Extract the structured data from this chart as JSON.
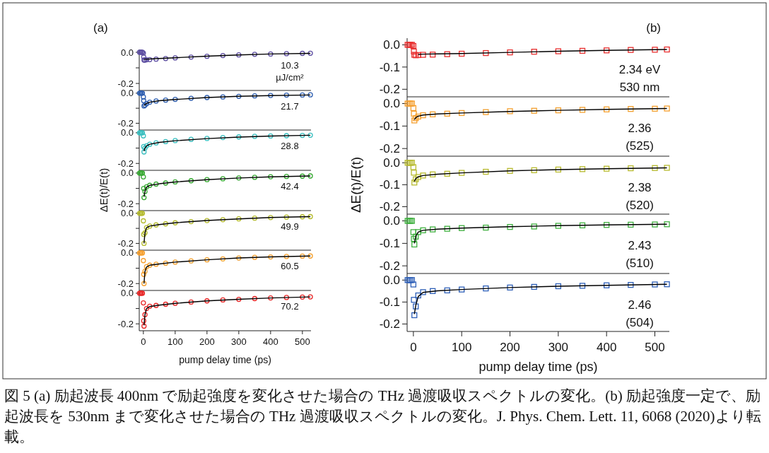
{
  "chart_data": [
    {
      "type": "scatter",
      "title": "(a)",
      "marker": "circle",
      "tick_labels": "y",
      "xlim": [
        -13,
        527
      ],
      "ylim": [
        -0.245,
        0.018
      ],
      "yticks": [
        {
          "value": 0,
          "label": "0.0"
        },
        {
          "value": -0.1,
          "label": null
        },
        {
          "value": -0.2,
          "label": "-0.2"
        }
      ],
      "annotations": [
        "10.3",
        "µJ/cm²"
      ],
      "series": [
        {
          "type": "scatter",
          "color": "#5e4fa2",
          "x": [
            -12,
            -9,
            -6,
            -3,
            0,
            1,
            2,
            5,
            10,
            20,
            40,
            70,
            100,
            150,
            200,
            250,
            300,
            350,
            400,
            450,
            500,
            525
          ],
          "values": [
            0,
            0,
            0,
            0,
            -0.005,
            -0.03,
            -0.05,
            -0.05,
            -0.048,
            -0.047,
            -0.044,
            -0.04,
            -0.036,
            -0.031,
            -0.026,
            -0.021,
            -0.017,
            -0.013,
            -0.011,
            -0.009,
            -0.007,
            -0.006
          ]
        },
        {
          "type": "line",
          "marker": "none",
          "color": "#000000",
          "x": [
            2,
            5,
            10,
            20,
            50,
            100,
            200,
            300,
            400,
            525
          ],
          "values": [
            -0.045,
            -0.045,
            -0.044,
            -0.043,
            -0.04,
            -0.035,
            -0.025,
            -0.017,
            -0.011,
            -0.007
          ]
        }
      ]
    },
    {
      "type": "scatter",
      "marker": "circle",
      "tick_labels": "y",
      "xlim": [
        -13,
        527
      ],
      "ylim": [
        -0.245,
        0.018
      ],
      "yticks": [
        {
          "value": 0,
          "label": "0.0"
        },
        {
          "value": -0.1,
          "label": null
        },
        {
          "value": -0.2,
          "label": "-0.2"
        }
      ],
      "annotations": [
        "21.7"
      ],
      "series": [
        {
          "type": "scatter",
          "color": "#2f5fb0",
          "x": [
            -12,
            -9,
            -6,
            -3,
            0,
            1,
            2,
            5,
            10,
            20,
            40,
            70,
            100,
            150,
            200,
            250,
            300,
            350,
            400,
            450,
            500,
            525
          ],
          "values": [
            0,
            0,
            0,
            0,
            -0.025,
            -0.05,
            -0.085,
            -0.08,
            -0.07,
            -0.06,
            -0.052,
            -0.046,
            -0.041,
            -0.034,
            -0.029,
            -0.025,
            -0.021,
            -0.018,
            -0.015,
            -0.013,
            -0.012,
            -0.011
          ]
        },
        {
          "type": "line",
          "marker": "none",
          "color": "#000000",
          "x": [
            2,
            5,
            10,
            20,
            50,
            100,
            200,
            300,
            400,
            525
          ],
          "values": [
            -0.082,
            -0.075,
            -0.068,
            -0.06,
            -0.05,
            -0.042,
            -0.029,
            -0.021,
            -0.016,
            -0.012
          ]
        }
      ]
    },
    {
      "type": "scatter",
      "marker": "circle",
      "tick_labels": "y",
      "xlim": [
        -13,
        527
      ],
      "ylim": [
        -0.245,
        0.018
      ],
      "yticks": [
        {
          "value": 0,
          "label": "0.0"
        },
        {
          "value": -0.1,
          "label": null
        },
        {
          "value": -0.2,
          "label": "-0.2"
        }
      ],
      "annotations": [
        "28.8"
      ],
      "series": [
        {
          "type": "scatter",
          "color": "#3bbfc0",
          "x": [
            -12,
            -9,
            -6,
            -3,
            0,
            1,
            2,
            5,
            10,
            20,
            40,
            70,
            100,
            150,
            200,
            250,
            300,
            350,
            400,
            450,
            500,
            525
          ],
          "values": [
            0,
            0,
            0,
            0,
            -0.02,
            -0.09,
            -0.125,
            -0.1,
            -0.085,
            -0.075,
            -0.066,
            -0.058,
            -0.051,
            -0.043,
            -0.037,
            -0.031,
            -0.027,
            -0.023,
            -0.021,
            -0.019,
            -0.017,
            -0.016
          ]
        },
        {
          "type": "line",
          "marker": "none",
          "color": "#000000",
          "x": [
            2,
            5,
            10,
            20,
            50,
            100,
            200,
            300,
            400,
            525
          ],
          "values": [
            -0.12,
            -0.1,
            -0.085,
            -0.075,
            -0.063,
            -0.052,
            -0.038,
            -0.028,
            -0.021,
            -0.016
          ]
        }
      ]
    },
    {
      "type": "scatter",
      "marker": "circle",
      "tick_labels": "y",
      "ylabel": "ΔE(t)/E(t)",
      "xlim": [
        -13,
        527
      ],
      "ylim": [
        -0.245,
        0.018
      ],
      "yticks": [
        {
          "value": 0,
          "label": "0.0"
        },
        {
          "value": -0.1,
          "label": null
        },
        {
          "value": -0.2,
          "label": "-0.2"
        }
      ],
      "annotations": [
        "42.4"
      ],
      "series": [
        {
          "type": "scatter",
          "color": "#3aaa35",
          "x": [
            -12,
            -9,
            -6,
            -3,
            0,
            1,
            2,
            5,
            10,
            20,
            40,
            70,
            100,
            150,
            200,
            250,
            300,
            350,
            400,
            450,
            500,
            525
          ],
          "values": [
            0,
            0,
            0,
            0,
            -0.025,
            -0.1,
            -0.16,
            -0.12,
            -0.09,
            -0.08,
            -0.072,
            -0.065,
            -0.058,
            -0.05,
            -0.043,
            -0.037,
            -0.032,
            -0.028,
            -0.024,
            -0.022,
            -0.02,
            -0.019
          ]
        },
        {
          "type": "line",
          "marker": "none",
          "color": "#000000",
          "x": [
            2,
            5,
            10,
            20,
            50,
            100,
            200,
            300,
            400,
            525
          ],
          "values": [
            -0.155,
            -0.12,
            -0.092,
            -0.08,
            -0.07,
            -0.058,
            -0.043,
            -0.032,
            -0.025,
            -0.019
          ]
        }
      ]
    },
    {
      "type": "scatter",
      "marker": "circle",
      "tick_labels": "y",
      "xlim": [
        -13,
        527
      ],
      "ylim": [
        -0.245,
        0.018
      ],
      "yticks": [
        {
          "value": 0,
          "label": "0.0"
        },
        {
          "value": -0.1,
          "label": null
        },
        {
          "value": -0.2,
          "label": "-0.2"
        }
      ],
      "annotations": [
        "49.9"
      ],
      "series": [
        {
          "type": "scatter",
          "color": "#b5bb30",
          "x": [
            -12,
            -9,
            -6,
            -3,
            0,
            1,
            2,
            5,
            10,
            20,
            40,
            70,
            100,
            150,
            200,
            250,
            300,
            350,
            400,
            450,
            500,
            525
          ],
          "values": [
            0,
            0,
            0,
            0,
            -0.05,
            -0.14,
            -0.2,
            -0.13,
            -0.095,
            -0.085,
            -0.077,
            -0.07,
            -0.063,
            -0.055,
            -0.048,
            -0.042,
            -0.037,
            -0.032,
            -0.028,
            -0.025,
            -0.023,
            -0.022
          ]
        },
        {
          "type": "line",
          "marker": "none",
          "color": "#000000",
          "x": [
            2,
            5,
            10,
            20,
            50,
            100,
            200,
            300,
            400,
            525
          ],
          "values": [
            -0.2,
            -0.13,
            -0.095,
            -0.085,
            -0.075,
            -0.063,
            -0.048,
            -0.037,
            -0.028,
            -0.022
          ]
        }
      ]
    },
    {
      "type": "scatter",
      "marker": "circle",
      "tick_labels": "y",
      "xlim": [
        -13,
        527
      ],
      "ylim": [
        -0.245,
        0.018
      ],
      "yticks": [
        {
          "value": 0,
          "label": "0.0"
        },
        {
          "value": -0.1,
          "label": null
        },
        {
          "value": -0.2,
          "label": "-0.2"
        }
      ],
      "annotations": [
        "60.5"
      ],
      "series": [
        {
          "type": "scatter",
          "color": "#f5a030",
          "x": [
            -12,
            -9,
            -6,
            -3,
            0,
            1,
            2,
            5,
            10,
            20,
            40,
            70,
            100,
            150,
            200,
            250,
            300,
            350,
            400,
            450,
            500,
            525
          ],
          "values": [
            0,
            0,
            0,
            0,
            -0.05,
            -0.14,
            -0.2,
            -0.12,
            -0.09,
            -0.08,
            -0.074,
            -0.067,
            -0.06,
            -0.052,
            -0.045,
            -0.039,
            -0.033,
            -0.029,
            -0.026,
            -0.023,
            -0.021,
            -0.02
          ]
        },
        {
          "type": "line",
          "marker": "none",
          "color": "#000000",
          "x": [
            2,
            5,
            10,
            20,
            50,
            100,
            200,
            300,
            400,
            525
          ],
          "values": [
            -0.2,
            -0.12,
            -0.092,
            -0.08,
            -0.072,
            -0.06,
            -0.045,
            -0.033,
            -0.026,
            -0.02
          ]
        }
      ]
    },
    {
      "type": "scatter",
      "marker": "circle",
      "xlabel": "pump delay time (ps)",
      "xlim": [
        -13,
        527
      ],
      "ylim": [
        -0.245,
        0.018
      ],
      "xticks": [
        0,
        100,
        200,
        300,
        400,
        500
      ],
      "yticks": [
        {
          "value": 0,
          "label": "0.0"
        },
        {
          "value": -0.1,
          "label": null
        },
        {
          "value": -0.2,
          "label": "-0.2"
        }
      ],
      "annotations": [
        "70.2"
      ],
      "series": [
        {
          "type": "scatter",
          "color": "#e82828",
          "x": [
            -12,
            -9,
            -6,
            -3,
            0,
            1,
            2,
            5,
            10,
            20,
            40,
            70,
            100,
            150,
            200,
            250,
            300,
            350,
            400,
            450,
            500,
            525
          ],
          "values": [
            0,
            0,
            0,
            0,
            -0.063,
            -0.18,
            -0.215,
            -0.14,
            -0.1,
            -0.085,
            -0.08,
            -0.072,
            -0.066,
            -0.058,
            -0.05,
            -0.044,
            -0.04,
            -0.035,
            -0.031,
            -0.028,
            -0.025,
            -0.024
          ]
        },
        {
          "type": "line",
          "marker": "none",
          "color": "#000000",
          "x": [
            2,
            5,
            10,
            20,
            50,
            100,
            200,
            300,
            400,
            525
          ],
          "values": [
            -0.21,
            -0.14,
            -0.1,
            -0.087,
            -0.078,
            -0.066,
            -0.05,
            -0.04,
            -0.031,
            -0.024
          ]
        }
      ]
    },
    {
      "type": "scatter",
      "title": "(b)",
      "marker": "square",
      "tick_labels": "y",
      "xlim": [
        -13,
        530
      ],
      "ylim": [
        -0.234,
        0.03
      ],
      "yticks": [
        {
          "value": 0,
          "label": "0.0"
        },
        {
          "value": -0.1,
          "label": "-0.1"
        },
        {
          "value": -0.2,
          "label": "-0.2"
        }
      ],
      "annotations": [
        "2.34 eV",
        "530 nm"
      ],
      "series": [
        {
          "type": "scatter",
          "color": "#e83030",
          "x": [
            -12,
            -9,
            -6,
            -3,
            0,
            1,
            2,
            5,
            10,
            20,
            40,
            70,
            100,
            150,
            200,
            250,
            300,
            350,
            400,
            450,
            500,
            525
          ],
          "values": [
            0,
            0,
            0,
            0,
            -0.005,
            -0.03,
            -0.045,
            -0.047,
            -0.046,
            -0.045,
            -0.044,
            -0.042,
            -0.04,
            -0.037,
            -0.034,
            -0.031,
            -0.029,
            -0.027,
            -0.025,
            -0.023,
            -0.022,
            -0.021
          ]
        },
        {
          "type": "line",
          "marker": "none",
          "color": "#000000",
          "x": [
            10,
            20,
            50,
            100,
            200,
            300,
            400,
            525
          ],
          "values": [
            -0.043,
            -0.042,
            -0.041,
            -0.039,
            -0.034,
            -0.029,
            -0.025,
            -0.021
          ]
        }
      ]
    },
    {
      "type": "scatter",
      "marker": "square",
      "tick_labels": "y",
      "xlim": [
        -13,
        530
      ],
      "ylim": [
        -0.234,
        0.03
      ],
      "yticks": [
        {
          "value": 0,
          "label": "0.0"
        },
        {
          "value": -0.1,
          "label": "-0.1"
        },
        {
          "value": -0.2,
          "label": "-0.2"
        }
      ],
      "annotations": [
        "2.36",
        "(525)"
      ],
      "series": [
        {
          "type": "scatter",
          "color": "#f5a030",
          "x": [
            -12,
            -9,
            -6,
            -3,
            0,
            1,
            2,
            5,
            10,
            20,
            40,
            70,
            100,
            150,
            200,
            250,
            300,
            350,
            400,
            450,
            500,
            525
          ],
          "values": [
            0,
            0,
            0,
            0,
            -0.02,
            -0.045,
            -0.075,
            -0.065,
            -0.058,
            -0.052,
            -0.048,
            -0.045,
            -0.042,
            -0.038,
            -0.034,
            -0.032,
            -0.03,
            -0.028,
            -0.026,
            -0.024,
            -0.023,
            -0.022
          ]
        },
        {
          "type": "line",
          "marker": "none",
          "color": "#000000",
          "x": [
            2,
            5,
            10,
            20,
            50,
            100,
            200,
            300,
            400,
            525
          ],
          "values": [
            -0.072,
            -0.062,
            -0.056,
            -0.051,
            -0.046,
            -0.042,
            -0.035,
            -0.03,
            -0.026,
            -0.022
          ]
        }
      ]
    },
    {
      "type": "scatter",
      "marker": "square",
      "tick_labels": "y",
      "ylabel": "ΔE(t)/E(t)",
      "xlim": [
        -13,
        530
      ],
      "ylim": [
        -0.234,
        0.03
      ],
      "yticks": [
        {
          "value": 0,
          "label": "0.0"
        },
        {
          "value": -0.1,
          "label": "-0.1"
        },
        {
          "value": -0.2,
          "label": "-0.2"
        }
      ],
      "annotations": [
        "2.38",
        "(520)"
      ],
      "series": [
        {
          "type": "scatter",
          "color": "#b8bb30",
          "x": [
            -12,
            -9,
            -6,
            -3,
            0,
            1,
            2,
            5,
            10,
            20,
            40,
            70,
            100,
            150,
            200,
            250,
            300,
            350,
            400,
            450,
            500,
            525
          ],
          "values": [
            0,
            0,
            0,
            0,
            -0.02,
            -0.045,
            -0.09,
            -0.075,
            -0.065,
            -0.058,
            -0.053,
            -0.05,
            -0.046,
            -0.041,
            -0.037,
            -0.034,
            -0.031,
            -0.029,
            -0.027,
            -0.025,
            -0.024,
            -0.023
          ]
        },
        {
          "type": "line",
          "marker": "none",
          "color": "#000000",
          "x": [
            2,
            5,
            10,
            20,
            50,
            100,
            200,
            300,
            400,
            525
          ],
          "values": [
            -0.085,
            -0.072,
            -0.064,
            -0.058,
            -0.052,
            -0.046,
            -0.037,
            -0.031,
            -0.027,
            -0.023
          ]
        }
      ]
    },
    {
      "type": "scatter",
      "marker": "square",
      "tick_labels": "y",
      "xlim": [
        -13,
        530
      ],
      "ylim": [
        -0.234,
        0.03
      ],
      "yticks": [
        {
          "value": 0,
          "label": "0.0"
        },
        {
          "value": -0.1,
          "label": "-0.1"
        },
        {
          "value": -0.2,
          "label": "-0.2"
        }
      ],
      "annotations": [
        "2.43",
        "(510)"
      ],
      "series": [
        {
          "type": "scatter",
          "color": "#40b040",
          "x": [
            -12,
            -9,
            -6,
            -3,
            0,
            1,
            2,
            5,
            10,
            20,
            40,
            70,
            100,
            150,
            200,
            250,
            300,
            350,
            400,
            450,
            500,
            525
          ],
          "values": [
            0,
            0,
            0,
            0,
            -0.05,
            -0.08,
            -0.105,
            -0.07,
            -0.05,
            -0.042,
            -0.038,
            -0.035,
            -0.032,
            -0.03,
            -0.027,
            -0.025,
            -0.022,
            -0.02,
            -0.018,
            -0.017,
            -0.016,
            -0.015
          ]
        },
        {
          "type": "line",
          "marker": "none",
          "color": "#000000",
          "x": [
            2,
            5,
            10,
            20,
            50,
            100,
            200,
            300,
            400,
            525
          ],
          "values": [
            -0.1,
            -0.068,
            -0.05,
            -0.042,
            -0.037,
            -0.032,
            -0.026,
            -0.021,
            -0.018,
            -0.015
          ]
        }
      ]
    },
    {
      "type": "scatter",
      "marker": "square",
      "xlabel": "pump delay time (ps)",
      "xlim": [
        -13,
        530
      ],
      "ylim": [
        -0.234,
        0.03
      ],
      "xticks": [
        0,
        100,
        200,
        300,
        400,
        500
      ],
      "yticks": [
        {
          "value": 0,
          "label": "0.0"
        },
        {
          "value": -0.1,
          "label": "-0.1"
        },
        {
          "value": -0.2,
          "label": "-0.2"
        }
      ],
      "annotations": [
        "2.46",
        "(504)"
      ],
      "series": [
        {
          "type": "scatter",
          "color": "#2f60b8",
          "x": [
            -12,
            -9,
            -6,
            -3,
            0,
            1,
            2,
            5,
            10,
            20,
            40,
            70,
            100,
            150,
            200,
            250,
            300,
            350,
            400,
            450,
            500,
            525
          ],
          "values": [
            0,
            0,
            0,
            0,
            -0.02,
            -0.09,
            -0.16,
            -0.12,
            -0.07,
            -0.055,
            -0.05,
            -0.047,
            -0.043,
            -0.038,
            -0.034,
            -0.031,
            -0.028,
            -0.026,
            -0.024,
            -0.022,
            -0.02,
            -0.019
          ]
        },
        {
          "type": "line",
          "marker": "none",
          "color": "#000000",
          "x": [
            2,
            5,
            10,
            20,
            50,
            100,
            200,
            300,
            400,
            525
          ],
          "values": [
            -0.155,
            -0.115,
            -0.075,
            -0.056,
            -0.049,
            -0.043,
            -0.034,
            -0.028,
            -0.024,
            -0.019
          ]
        }
      ]
    },
    {
      "type": "other",
      "annotations": [
        "図 5 (a) 励起波長 400nm で励起強度を変化させた場合の THz 過渡吸収スペクトルの変化。(b) 励起強度一定で、励起波長を 530nm まで変化させた場合の THz 過渡吸収スペクトルの変化。J. Phys. Chem. Lett. 11, 6068 (2020)より転載。"
      ]
    }
  ]
}
